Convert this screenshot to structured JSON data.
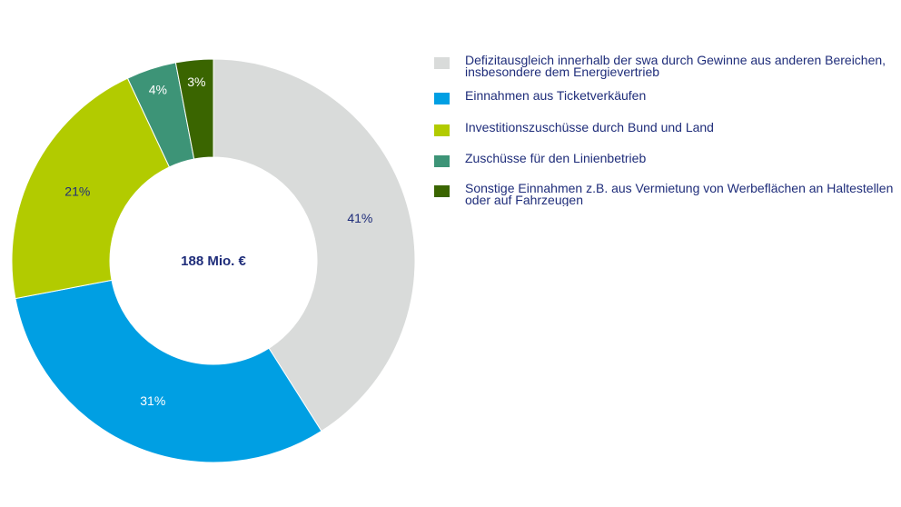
{
  "chart_data": {
    "type": "pie",
    "variant": "donut",
    "center_label": "188 Mio. €",
    "legend_position": "right",
    "slices": [
      {
        "name": "Defizitausgleich innerhalb der swa durch Gewinne aus anderen Bereichen,\ninsbesondere dem Energievertrieb",
        "value": 41,
        "label": "41%",
        "color": "#d9dbda",
        "label_color": "#1f2d7a"
      },
      {
        "name": "Einnahmen aus Ticketverkäufen",
        "value": 31,
        "label": "31%",
        "color": "#009fe3",
        "label_color": "#ffffff"
      },
      {
        "name": "Investitionszuschüsse durch Bund und Land",
        "value": 21,
        "label": "21%",
        "color": "#b2cb00",
        "label_color": "#1f2d7a"
      },
      {
        "name": "Zuschüsse für den Linienbetrieb",
        "value": 4,
        "label": "4%",
        "color": "#3d9477",
        "label_color": "#ffffff"
      },
      {
        "name": "Sonstige Einnahmen z.B. aus Vermietung von Werbeflächen an Haltestellen\noder auf Fahrzeugen",
        "value": 3,
        "label": "3%",
        "color": "#3a6500",
        "label_color": "#ffffff"
      }
    ]
  }
}
